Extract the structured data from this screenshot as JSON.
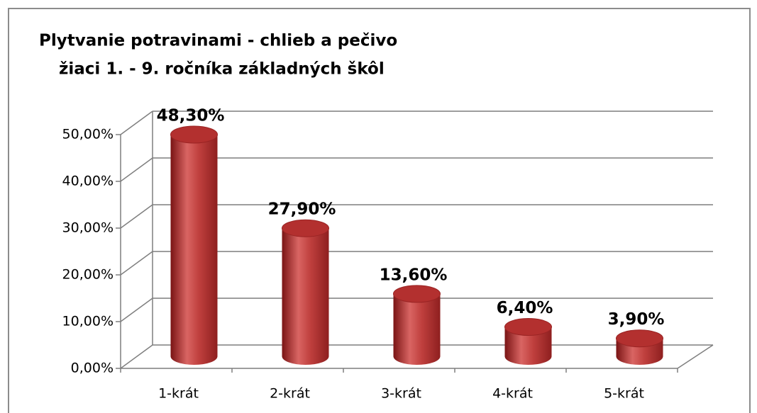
{
  "chart_data": {
    "type": "bar3d",
    "title": "Plytvanie potravinami - chlieb a pečivo",
    "subtitle": "žiaci 1. - 9. ročníka základných škôl",
    "categories": [
      "1-krát",
      "2-krát",
      "3-krát",
      "4-krát",
      "5-krát"
    ],
    "values": [
      48.3,
      27.9,
      13.6,
      6.4,
      3.9
    ],
    "value_labels": [
      "48,30%",
      "27,90%",
      "13,60%",
      "6,40%",
      "3,90%"
    ],
    "color": "#c0392b",
    "ylim": [
      0,
      50
    ],
    "yticks": [
      {
        "value": 0,
        "label": "0,00%"
      },
      {
        "value": 10,
        "label": "10,00%"
      },
      {
        "value": 20,
        "label": "20,00%"
      },
      {
        "value": 30,
        "label": "30,00%"
      },
      {
        "value": 40,
        "label": "40,00%"
      },
      {
        "value": 50,
        "label": "50,00%"
      }
    ],
    "grid": true
  }
}
